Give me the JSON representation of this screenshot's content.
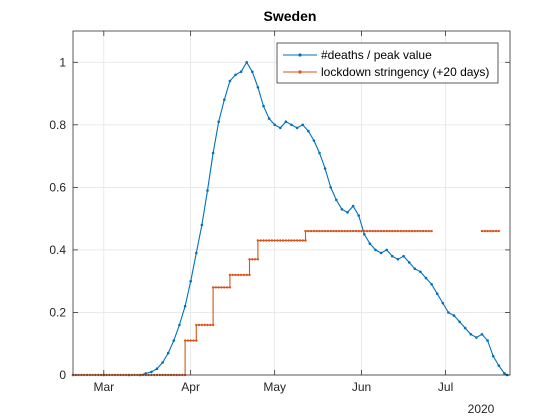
{
  "chart_data": {
    "type": "line",
    "title": "Sweden",
    "xlabel": "",
    "ylabel": "",
    "x_unit": "date",
    "x_range": [
      "2020-02-19",
      "2020-07-24"
    ],
    "ylim": [
      0,
      1.1
    ],
    "x_ticks": [
      {
        "date": "2020-03-01",
        "label": "Mar"
      },
      {
        "date": "2020-04-01",
        "label": "Apr"
      },
      {
        "date": "2020-05-01",
        "label": "May"
      },
      {
        "date": "2020-06-01",
        "label": "Jun"
      },
      {
        "date": "2020-07-01",
        "label": "Jul"
      }
    ],
    "x_year_label": "2020",
    "y_ticks": [
      0,
      0.2,
      0.4,
      0.6,
      0.8,
      1
    ],
    "y_tick_labels": [
      "0",
      "0.2",
      "0.4",
      "0.6",
      "0.8",
      "1"
    ],
    "grid": true,
    "legend_position": "top-right",
    "series": [
      {
        "name": "#deaths / peak value",
        "color": "#0072BD",
        "points": [
          [
            "2020-02-19",
            0
          ],
          [
            "2020-03-01",
            0
          ],
          [
            "2020-03-10",
            0
          ],
          [
            "2020-03-14",
            0
          ],
          [
            "2020-03-16",
            0.005
          ],
          [
            "2020-03-18",
            0.01
          ],
          [
            "2020-03-20",
            0.02
          ],
          [
            "2020-03-22",
            0.04
          ],
          [
            "2020-03-24",
            0.07
          ],
          [
            "2020-03-26",
            0.11
          ],
          [
            "2020-03-28",
            0.16
          ],
          [
            "2020-03-30",
            0.22
          ],
          [
            "2020-04-01",
            0.3
          ],
          [
            "2020-04-03",
            0.39
          ],
          [
            "2020-04-05",
            0.48
          ],
          [
            "2020-04-07",
            0.59
          ],
          [
            "2020-04-09",
            0.71
          ],
          [
            "2020-04-11",
            0.81
          ],
          [
            "2020-04-13",
            0.88
          ],
          [
            "2020-04-15",
            0.94
          ],
          [
            "2020-04-17",
            0.96
          ],
          [
            "2020-04-19",
            0.97
          ],
          [
            "2020-04-21",
            1.0
          ],
          [
            "2020-04-23",
            0.97
          ],
          [
            "2020-04-25",
            0.92
          ],
          [
            "2020-04-27",
            0.86
          ],
          [
            "2020-04-29",
            0.82
          ],
          [
            "2020-05-01",
            0.8
          ],
          [
            "2020-05-03",
            0.79
          ],
          [
            "2020-05-05",
            0.81
          ],
          [
            "2020-05-07",
            0.8
          ],
          [
            "2020-05-09",
            0.79
          ],
          [
            "2020-05-11",
            0.8
          ],
          [
            "2020-05-13",
            0.78
          ],
          [
            "2020-05-15",
            0.75
          ],
          [
            "2020-05-17",
            0.71
          ],
          [
            "2020-05-19",
            0.66
          ],
          [
            "2020-05-21",
            0.6
          ],
          [
            "2020-05-23",
            0.56
          ],
          [
            "2020-05-25",
            0.53
          ],
          [
            "2020-05-27",
            0.52
          ],
          [
            "2020-05-29",
            0.54
          ],
          [
            "2020-05-31",
            0.51
          ],
          [
            "2020-06-02",
            0.45
          ],
          [
            "2020-06-04",
            0.42
          ],
          [
            "2020-06-06",
            0.4
          ],
          [
            "2020-06-08",
            0.39
          ],
          [
            "2020-06-10",
            0.4
          ],
          [
            "2020-06-12",
            0.38
          ],
          [
            "2020-06-14",
            0.37
          ],
          [
            "2020-06-16",
            0.38
          ],
          [
            "2020-06-18",
            0.36
          ],
          [
            "2020-06-20",
            0.34
          ],
          [
            "2020-06-22",
            0.33
          ],
          [
            "2020-06-24",
            0.31
          ],
          [
            "2020-06-26",
            0.29
          ],
          [
            "2020-06-28",
            0.26
          ],
          [
            "2020-06-30",
            0.23
          ],
          [
            "2020-07-02",
            0.2
          ],
          [
            "2020-07-04",
            0.19
          ],
          [
            "2020-07-06",
            0.17
          ],
          [
            "2020-07-08",
            0.15
          ],
          [
            "2020-07-10",
            0.13
          ],
          [
            "2020-07-12",
            0.12
          ],
          [
            "2020-07-14",
            0.13
          ],
          [
            "2020-07-16",
            0.11
          ],
          [
            "2020-07-18",
            0.06
          ],
          [
            "2020-07-20",
            0.03
          ],
          [
            "2020-07-22",
            0.005
          ],
          [
            "2020-07-23",
            0
          ]
        ]
      },
      {
        "name": "lockdown stringency (+20 days)",
        "color": "#D95319",
        "step": true,
        "segments": [
          [
            [
              "2020-02-19",
              0
            ],
            [
              "2020-03-30",
              0
            ],
            [
              "2020-03-30",
              0.11
            ],
            [
              "2020-04-03",
              0.11
            ],
            [
              "2020-04-03",
              0.16
            ],
            [
              "2020-04-09",
              0.16
            ],
            [
              "2020-04-09",
              0.28
            ],
            [
              "2020-04-15",
              0.28
            ],
            [
              "2020-04-15",
              0.32
            ],
            [
              "2020-04-22",
              0.32
            ],
            [
              "2020-04-22",
              0.37
            ],
            [
              "2020-04-25",
              0.37
            ],
            [
              "2020-04-25",
              0.43
            ],
            [
              "2020-05-12",
              0.43
            ],
            [
              "2020-05-12",
              0.46
            ],
            [
              "2020-06-26",
              0.46
            ]
          ],
          [
            [
              "2020-07-14",
              0.46
            ],
            [
              "2020-07-20",
              0.46
            ]
          ]
        ]
      }
    ]
  }
}
